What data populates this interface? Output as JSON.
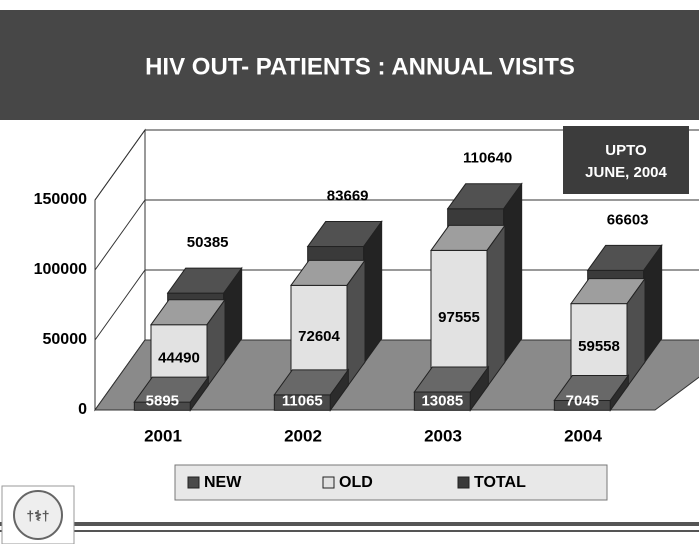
{
  "chart_data": {
    "type": "bar3d",
    "title": "HIV OUT- PATIENTS : ANNUAL VISITS",
    "annotation": [
      "UPTO",
      "JUNE, 2004"
    ],
    "categories": [
      "2001",
      "2002",
      "2003",
      "2004"
    ],
    "series": [
      {
        "name": "NEW",
        "color": "#4a4a4a",
        "values": [
          5895,
          11065,
          13085,
          7045
        ]
      },
      {
        "name": "OLD",
        "color": "#e2e2e2",
        "values": [
          44490,
          72604,
          97555,
          59558
        ]
      },
      {
        "name": "TOTAL",
        "color": "#3a3a3a",
        "values": [
          50385,
          83669,
          110640,
          66603
        ]
      }
    ],
    "ylim": [
      0,
      150000
    ],
    "yticks": [
      0,
      50000,
      100000,
      150000
    ],
    "grid": true
  }
}
